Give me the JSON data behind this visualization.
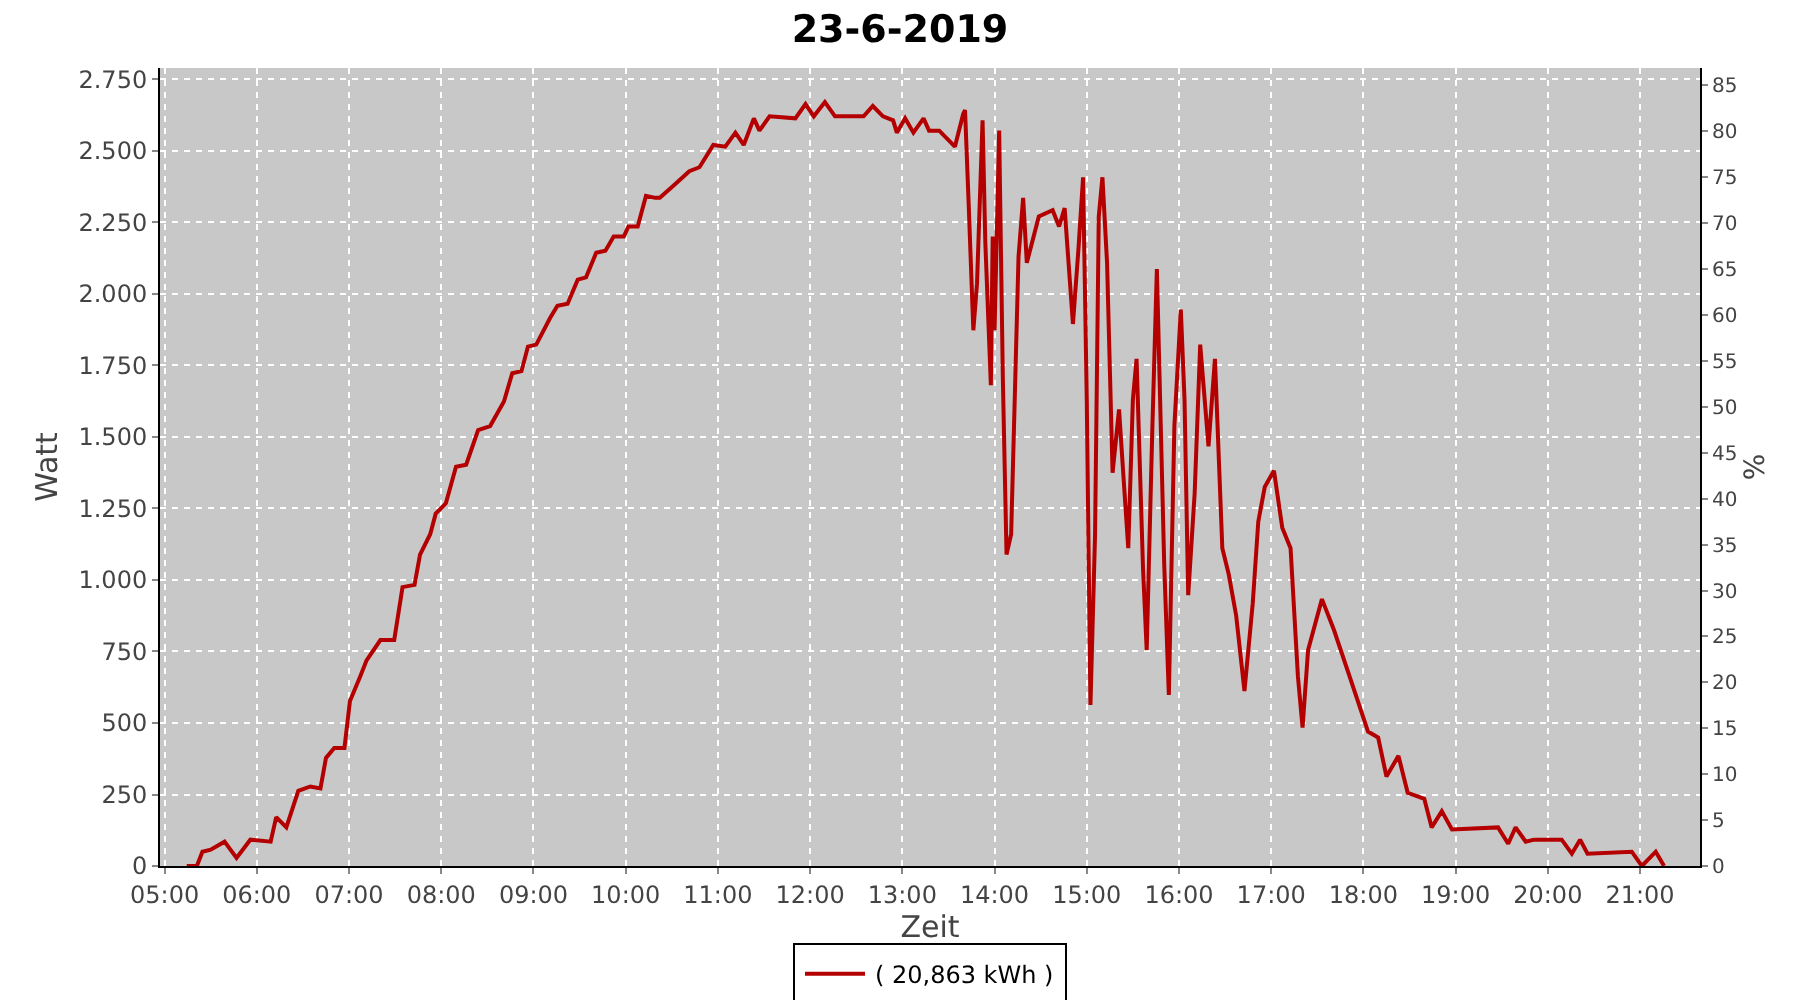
{
  "chart_data": {
    "type": "line",
    "title": "23-6-2019",
    "xlabel": "Zeit",
    "ylabel": "Watt",
    "y2label": "%",
    "xlim": [
      4.95,
      21.65
    ],
    "xticks": [
      {
        "value": 5,
        "label": "05:00"
      },
      {
        "value": 6,
        "label": "06:00"
      },
      {
        "value": 7,
        "label": "07:00"
      },
      {
        "value": 8,
        "label": "08:00"
      },
      {
        "value": 9,
        "label": "09:00"
      },
      {
        "value": 10,
        "label": "10:00"
      },
      {
        "value": 11,
        "label": "11:00"
      },
      {
        "value": 12,
        "label": "12:00"
      },
      {
        "value": 13,
        "label": "13:00"
      },
      {
        "value": 14,
        "label": "14:00"
      },
      {
        "value": 15,
        "label": "15:00"
      },
      {
        "value": 16,
        "label": "16:00"
      },
      {
        "value": 17,
        "label": "17:00"
      },
      {
        "value": 18,
        "label": "18:00"
      },
      {
        "value": 19,
        "label": "19:00"
      },
      {
        "value": 20,
        "label": "20:00"
      },
      {
        "value": 21,
        "label": "21:00"
      }
    ],
    "ylim": [
      0,
      2790
    ],
    "yticks": [
      0,
      250,
      500,
      750,
      {
        "value": 1000,
        "label": "1.000"
      },
      {
        "value": 1250,
        "label": "1.250"
      },
      {
        "value": 1500,
        "label": "1.500"
      },
      {
        "value": 1750,
        "label": "1.750"
      },
      {
        "value": 2000,
        "label": "2.000"
      },
      {
        "value": 2250,
        "label": "2.250"
      },
      {
        "value": 2500,
        "label": "2.500"
      },
      {
        "value": 2750,
        "label": "2.750"
      }
    ],
    "y2lim": [
      0,
      86.9
    ],
    "y2ticks": [
      0,
      5,
      10,
      15,
      20,
      25,
      30,
      35,
      40,
      45,
      50,
      55,
      60,
      65,
      70,
      75,
      80,
      85
    ],
    "grid": true,
    "legend": "bottom",
    "marker": "none",
    "line_style": "solid",
    "x": [
      5.24,
      5.35,
      5.41,
      5.5,
      5.65,
      5.78,
      5.93,
      6.15,
      6.21,
      6.32,
      6.45,
      6.58,
      6.69,
      6.75,
      6.84,
      6.95,
      7.01,
      7.12,
      7.19,
      7.34,
      7.49,
      7.58,
      7.71,
      7.77,
      7.88,
      7.94,
      8.05,
      8.16,
      8.27,
      8.4,
      8.53,
      8.68,
      8.77,
      8.87,
      8.94,
      9.03,
      9.18,
      9.26,
      9.37,
      9.48,
      9.57,
      9.68,
      9.78,
      9.87,
      9.98,
      10.03,
      10.13,
      10.22,
      10.32,
      10.37,
      10.52,
      10.69,
      10.8,
      10.95,
      11.08,
      11.19,
      11.28,
      11.39,
      11.45,
      11.56,
      11.84,
      11.95,
      12.04,
      12.16,
      12.27,
      12.58,
      12.68,
      12.79,
      12.9,
      12.94,
      13.03,
      13.12,
      13.23,
      13.29,
      13.4,
      13.57,
      13.66,
      13.68,
      13.72,
      13.77,
      13.81,
      13.87,
      13.9,
      13.96,
      13.98,
      14.0,
      14.05,
      14.09,
      14.13,
      14.18,
      14.26,
      14.31,
      14.35,
      14.48,
      14.63,
      14.7,
      14.76,
      14.85,
      14.91,
      14.96,
      15.0,
      15.04,
      15.09,
      15.13,
      15.17,
      15.22,
      15.28,
      15.35,
      15.41,
      15.45,
      15.5,
      15.54,
      15.61,
      15.65,
      15.71,
      15.76,
      15.84,
      15.89,
      15.95,
      16.02,
      16.06,
      16.1,
      16.17,
      16.23,
      16.32,
      16.39,
      16.47,
      16.54,
      16.62,
      16.71,
      16.8,
      16.86,
      16.93,
      17.03,
      17.12,
      17.21,
      17.29,
      17.34,
      17.4,
      17.55,
      17.68,
      17.88,
      18.05,
      18.16,
      18.25,
      18.38,
      18.48,
      18.66,
      18.74,
      18.85,
      18.96,
      19.46,
      19.57,
      19.65,
      19.76,
      19.85,
      20.15,
      20.26,
      20.35,
      20.43,
      20.91,
      21.02,
      21.17,
      21.26
    ],
    "series": [
      {
        "name": "( 20,863 kWh )",
        "color": "#b40000",
        "values": [
          0,
          0,
          50,
          57,
          85,
          28,
          92,
          85,
          171,
          135,
          263,
          278,
          271,
          378,
          413,
          413,
          577,
          662,
          719,
          790,
          790,
          975,
          983,
          1089,
          1160,
          1232,
          1268,
          1396,
          1403,
          1524,
          1538,
          1624,
          1723,
          1730,
          1816,
          1823,
          1916,
          1959,
          1966,
          2050,
          2058,
          2144,
          2151,
          2201,
          2201,
          2236,
          2236,
          2343,
          2336,
          2336,
          2379,
          2429,
          2443,
          2521,
          2515,
          2564,
          2521,
          2614,
          2571,
          2621,
          2614,
          2664,
          2621,
          2671,
          2621,
          2621,
          2657,
          2621,
          2607,
          2564,
          2614,
          2564,
          2614,
          2571,
          2571,
          2515,
          2629,
          2643,
          2308,
          1873,
          2037,
          2607,
          2180,
          1681,
          2201,
          1873,
          2571,
          1702,
          1089,
          1160,
          2130,
          2336,
          2109,
          2271,
          2293,
          2236,
          2300,
          1895,
          2158,
          2408,
          1631,
          563,
          1160,
          2271,
          2408,
          2109,
          1375,
          1596,
          1303,
          1111,
          1631,
          1773,
          1040,
          755,
          1517,
          2087,
          1054,
          598,
          1538,
          1945,
          1631,
          947,
          1303,
          1823,
          1467,
          1773,
          1111,
          1019,
          876,
          612,
          919,
          1204,
          1325,
          1382,
          1183,
          1111,
          662,
          484,
          755,
          933,
          826,
          634,
          470,
          449,
          313,
          385,
          256,
          235,
          135,
          192,
          128,
          135,
          78,
          135,
          85,
          92,
          92,
          43,
          92,
          43,
          50,
          0,
          50,
          0
        ]
      }
    ]
  }
}
